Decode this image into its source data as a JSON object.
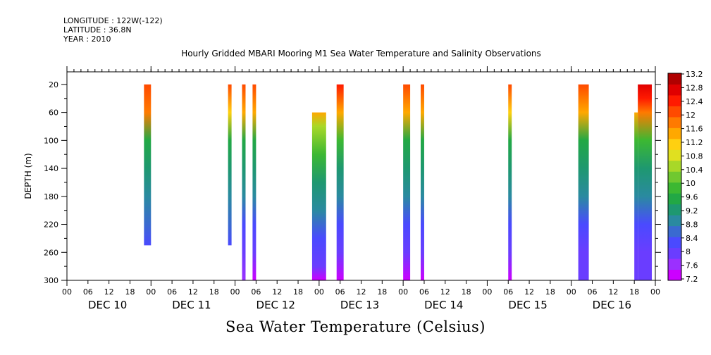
{
  "header": {
    "longitude": "LONGITUDE : 122W(-122)",
    "latitude": "LATITUDE : 36.8N",
    "year": "YEAR : 2010",
    "subtitle": "Hourly Gridded MBARI Mooring M1 Sea Water Temperature and Salinity Observations"
  },
  "chart_data": {
    "type": "heatmap",
    "title": "Sea Water Temperature (Celsius)",
    "ylabel": "DEPTH (m)",
    "xlabel": "",
    "ylim": [
      300,
      0
    ],
    "y_ticks": [
      20,
      60,
      100,
      140,
      180,
      220,
      260,
      300
    ],
    "x_tick_labels": [
      "00",
      "06",
      "12",
      "18",
      "00",
      "06",
      "12",
      "18",
      "00",
      "06",
      "12",
      "18",
      "00",
      "06",
      "12",
      "18",
      "00",
      "06",
      "12",
      "18",
      "00",
      "06",
      "12",
      "18",
      "00",
      "06",
      "12",
      "18",
      "00"
    ],
    "day_labels": [
      "DEC 10",
      "DEC 11",
      "DEC 12",
      "DEC 13",
      "DEC 14",
      "DEC 15",
      "DEC 16"
    ],
    "x_range_hours": [
      0,
      168
    ],
    "colorbar": {
      "labels": [
        "13.2",
        "12.8",
        "12.4",
        "12",
        "11.6",
        "11.2",
        "10.8",
        "10.4",
        "10",
        "9.6",
        "9.2",
        "8.8",
        "8.4",
        "8",
        "7.6",
        "7.2"
      ],
      "min": 7.2,
      "max": 13.2,
      "colors": [
        "#cc00ff",
        "#9b30ff",
        "#6a3dff",
        "#4a4aff",
        "#3a6ad0",
        "#2a8aa0",
        "#1e9870",
        "#22a845",
        "#3cb832",
        "#70c830",
        "#a8d828",
        "#e0e020",
        "#ffd010",
        "#ffa800",
        "#ff7a00",
        "#ff4a00",
        "#ff1a00",
        "#e00000",
        "#b00000"
      ]
    },
    "columns": [
      {
        "start_hour": 22,
        "end_hour": 24,
        "depth_top": 20,
        "depth_bottom": 250,
        "profile": [
          [
            20,
            12.1
          ],
          [
            60,
            11.7
          ],
          [
            100,
            9.6
          ],
          [
            140,
            9.3
          ],
          [
            180,
            9.0
          ],
          [
            220,
            8.6
          ],
          [
            250,
            8.2
          ]
        ]
      },
      {
        "start_hour": 46,
        "end_hour": 47,
        "depth_top": 20,
        "depth_bottom": 250,
        "profile": [
          [
            20,
            12.0
          ],
          [
            60,
            11.3
          ],
          [
            100,
            9.6
          ],
          [
            140,
            9.3
          ],
          [
            180,
            9.0
          ],
          [
            220,
            8.6
          ],
          [
            250,
            8.4
          ]
        ]
      },
      {
        "start_hour": 50,
        "end_hour": 51,
        "depth_top": 20,
        "depth_bottom": 300,
        "profile": [
          [
            20,
            12.2
          ],
          [
            60,
            11.4
          ],
          [
            100,
            9.6
          ],
          [
            140,
            9.2
          ],
          [
            180,
            8.8
          ],
          [
            220,
            8.4
          ],
          [
            260,
            8.0
          ],
          [
            300,
            7.6
          ]
        ]
      },
      {
        "start_hour": 53,
        "end_hour": 54,
        "depth_top": 20,
        "depth_bottom": 300,
        "profile": [
          [
            20,
            12.2
          ],
          [
            60,
            11.4
          ],
          [
            100,
            9.6
          ],
          [
            140,
            9.2
          ],
          [
            180,
            8.8
          ],
          [
            220,
            8.4
          ],
          [
            260,
            8.0
          ],
          [
            300,
            7.5
          ]
        ]
      },
      {
        "start_hour": 70,
        "end_hour": 74,
        "depth_top": 60,
        "depth_bottom": 300,
        "profile": [
          [
            60,
            11.4
          ],
          [
            80,
            10.6
          ],
          [
            120,
            9.8
          ],
          [
            160,
            9.4
          ],
          [
            200,
            9.0
          ],
          [
            240,
            8.4
          ],
          [
            280,
            7.9
          ],
          [
            300,
            7.5
          ]
        ]
      },
      {
        "start_hour": 77,
        "end_hour": 79,
        "depth_top": 20,
        "depth_bottom": 300,
        "profile": [
          [
            20,
            12.3
          ],
          [
            60,
            11.6
          ],
          [
            100,
            9.8
          ],
          [
            140,
            9.3
          ],
          [
            180,
            8.9
          ],
          [
            220,
            8.4
          ],
          [
            260,
            8.0
          ],
          [
            300,
            7.5
          ]
        ]
      },
      {
        "start_hour": 96,
        "end_hour": 98,
        "depth_top": 20,
        "depth_bottom": 300,
        "profile": [
          [
            20,
            12.2
          ],
          [
            60,
            11.4
          ],
          [
            100,
            9.6
          ],
          [
            140,
            9.2
          ],
          [
            180,
            8.8
          ],
          [
            220,
            8.4
          ],
          [
            260,
            8.0
          ],
          [
            300,
            7.5
          ]
        ]
      },
      {
        "start_hour": 101,
        "end_hour": 102,
        "depth_top": 20,
        "depth_bottom": 300,
        "profile": [
          [
            20,
            12.2
          ],
          [
            60,
            11.4
          ],
          [
            100,
            9.6
          ],
          [
            140,
            9.2
          ],
          [
            180,
            8.8
          ],
          [
            220,
            8.4
          ],
          [
            260,
            8.0
          ],
          [
            300,
            7.5
          ]
        ]
      },
      {
        "start_hour": 126,
        "end_hour": 127,
        "depth_top": 20,
        "depth_bottom": 300,
        "profile": [
          [
            20,
            12.1
          ],
          [
            60,
            11.3
          ],
          [
            100,
            9.6
          ],
          [
            140,
            9.2
          ],
          [
            180,
            8.8
          ],
          [
            220,
            8.4
          ],
          [
            260,
            8.0
          ],
          [
            300,
            7.5
          ]
        ]
      },
      {
        "start_hour": 146,
        "end_hour": 149,
        "depth_top": 20,
        "depth_bottom": 300,
        "profile": [
          [
            20,
            12.2
          ],
          [
            60,
            11.5
          ],
          [
            100,
            9.7
          ],
          [
            140,
            9.3
          ],
          [
            180,
            8.9
          ],
          [
            220,
            8.4
          ],
          [
            260,
            8.0
          ],
          [
            300,
            7.9
          ]
        ]
      },
      {
        "start_hour": 162,
        "end_hour": 163,
        "depth_top": 60,
        "depth_bottom": 300,
        "profile": [
          [
            60,
            11.6
          ],
          [
            100,
            9.8
          ],
          [
            140,
            9.4
          ],
          [
            180,
            8.9
          ],
          [
            220,
            8.4
          ],
          [
            260,
            8.0
          ],
          [
            300,
            7.9
          ]
        ]
      },
      {
        "start_hour": 163,
        "end_hour": 167,
        "depth_top": 20,
        "depth_bottom": 300,
        "profile": [
          [
            20,
            12.6
          ],
          [
            40,
            12.4
          ],
          [
            60,
            11.8
          ],
          [
            100,
            9.8
          ],
          [
            140,
            9.4
          ],
          [
            180,
            8.9
          ],
          [
            220,
            8.4
          ],
          [
            260,
            8.0
          ],
          [
            300,
            7.9
          ]
        ]
      }
    ]
  }
}
